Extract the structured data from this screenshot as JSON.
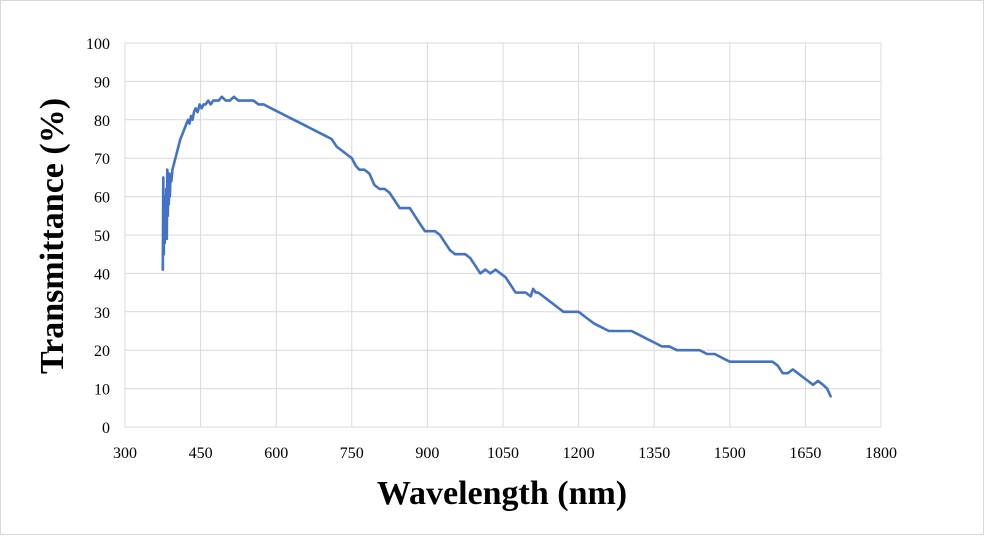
{
  "chart_data": {
    "type": "line",
    "title": "",
    "xlabel": "Wavelength (nm)",
    "ylabel": "Transmittance (%)",
    "xlim": [
      300,
      1800
    ],
    "ylim": [
      0,
      100
    ],
    "xticks": [
      300,
      450,
      600,
      750,
      900,
      1050,
      1200,
      1350,
      1500,
      1650,
      1800
    ],
    "yticks": [
      0,
      10,
      20,
      30,
      40,
      50,
      60,
      70,
      80,
      90,
      100
    ],
    "xtick_labels": [
      "300",
      "450",
      "600",
      "750",
      "900",
      "1050",
      "1200",
      "1350",
      "1500",
      "1650",
      "1800"
    ],
    "ytick_labels": [
      "0",
      "10",
      "20",
      "30",
      "40",
      "50",
      "60",
      "70",
      "80",
      "90",
      "100"
    ],
    "grid": true,
    "legend": "none",
    "line_color": "#4472c4",
    "series": [
      {
        "name": "Transmittance",
        "x": [
          375,
          376,
          377,
          378,
          379,
          380,
          381,
          382,
          383,
          384,
          385,
          386,
          387,
          388,
          389,
          390,
          392,
          394,
          396,
          398,
          400,
          402,
          404,
          406,
          408,
          410,
          413,
          416,
          419,
          422,
          425,
          428,
          431,
          434,
          437,
          440,
          444,
          448,
          452,
          456,
          460,
          465,
          470,
          475,
          480,
          486,
          492,
          500,
          508,
          516,
          525,
          535,
          545,
          555,
          565,
          575,
          590,
          605,
          620,
          635,
          650,
          665,
          680,
          695,
          710,
          720,
          730,
          740,
          750,
          758,
          765,
          775,
          785,
          795,
          805,
          815,
          825,
          835,
          845,
          855,
          865,
          875,
          885,
          895,
          905,
          915,
          925,
          935,
          945,
          955,
          965,
          975,
          985,
          995,
          1005,
          1015,
          1025,
          1035,
          1045,
          1055,
          1065,
          1075,
          1085,
          1095,
          1105,
          1110,
          1115,
          1120,
          1130,
          1140,
          1150,
          1160,
          1170,
          1180,
          1190,
          1200,
          1210,
          1220,
          1230,
          1245,
          1260,
          1275,
          1290,
          1305,
          1320,
          1335,
          1350,
          1365,
          1380,
          1395,
          1410,
          1425,
          1440,
          1455,
          1470,
          1485,
          1500,
          1515,
          1530,
          1545,
          1560,
          1575,
          1585,
          1595,
          1600,
          1605,
          1615,
          1625,
          1635,
          1645,
          1655,
          1665,
          1675,
          1685,
          1693,
          1700
        ],
        "values": [
          41,
          65,
          45,
          60,
          48,
          58,
          50,
          62,
          49,
          67,
          55,
          63,
          58,
          66,
          60,
          65,
          64,
          67,
          68,
          69,
          70,
          71,
          72,
          73,
          74,
          75,
          76,
          77,
          78,
          79,
          80,
          79,
          81,
          80,
          82,
          83,
          82,
          84,
          83,
          84,
          84,
          85,
          84,
          85,
          85,
          85,
          86,
          85,
          85,
          86,
          85,
          85,
          85,
          85,
          84,
          84,
          83,
          82,
          81,
          80,
          79,
          78,
          77,
          76,
          75,
          73,
          72,
          71,
          70,
          68,
          67,
          67,
          66,
          63,
          62,
          62,
          61,
          59,
          57,
          57,
          57,
          55,
          53,
          51,
          51,
          51,
          50,
          48,
          46,
          45,
          45,
          45,
          44,
          42,
          40,
          41,
          40,
          41,
          40,
          39,
          37,
          35,
          35,
          35,
          34,
          36,
          35,
          35,
          34,
          33,
          32,
          31,
          30,
          30,
          30,
          30,
          29,
          28,
          27,
          26,
          25,
          25,
          25,
          25,
          24,
          23,
          22,
          21,
          21,
          20,
          20,
          20,
          20,
          19,
          19,
          18,
          17,
          17,
          17,
          17,
          17,
          17,
          17,
          16,
          15,
          14,
          14,
          15,
          14,
          13,
          12,
          11,
          12,
          11,
          10,
          8
        ]
      }
    ]
  }
}
